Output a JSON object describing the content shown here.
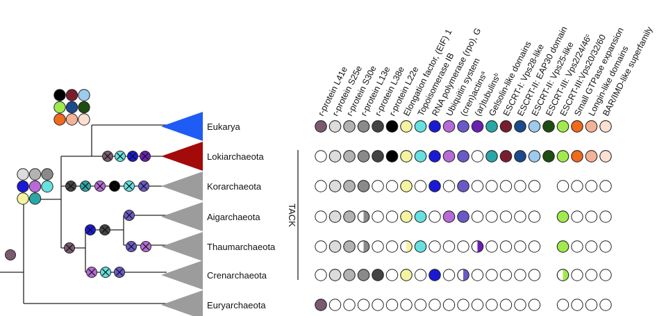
{
  "colors": {
    "eukarya_triangle": "#1f5cf5",
    "lokiarchaeota_triangle": "#a30a0a",
    "other_triangles": "#9c9c9c"
  },
  "characters": [
    {
      "key": "rL41e",
      "label": "r-protein L41e",
      "color": "#7a5a70"
    },
    {
      "key": "rS25e",
      "label": "r-protein S25e",
      "color": "#dcdcdc"
    },
    {
      "key": "rS30e",
      "label": "r-protein S30e",
      "color": "#b3b3b3"
    },
    {
      "key": "rL13e",
      "label": "r-protein L13e",
      "color": "#8a8a8a"
    },
    {
      "key": "rL38e",
      "label": "r-protein L38e",
      "color": "#444444"
    },
    {
      "key": "rL22e",
      "label": "r-protein L22e",
      "color": "#000000"
    },
    {
      "key": "eif1",
      "label": "Elongation factor, (EIF) 1",
      "color": "#f4f4a0"
    },
    {
      "key": "topo",
      "label": "Topoisomerase IB",
      "color": "#66e0e0"
    },
    {
      "key": "rpoG",
      "label": "RNA polymerase (rpo), G",
      "color": "#1a1ad6"
    },
    {
      "key": "ubq",
      "label": "Ubiquitin system",
      "color": "#b86ad8"
    },
    {
      "key": "actin",
      "label": "(cren)actins",
      "sup": "a",
      "color": "#6a5ac8"
    },
    {
      "key": "tub",
      "label": "(ar)tubulins",
      "sup": "b",
      "color": "#6b1fb3"
    },
    {
      "key": "gel",
      "label": "Gelsolin-like domains",
      "color": "#2aa6a6"
    },
    {
      "key": "escrt1",
      "label": "ESCRT-I: Vps28-like",
      "color": "#7a1e2e"
    },
    {
      "key": "escrt2a",
      "label": "ESCRT-II: EAP30 domain",
      "color": "#1c4a8c"
    },
    {
      "key": "escrt2b",
      "label": "ESCRT-II: Vps25-like",
      "color": "#9ccbee"
    },
    {
      "key": "escrt3a",
      "label": "ESCRT-III: Vps2/24/46",
      "sup": "c",
      "color": "#1d4d12"
    },
    {
      "key": "escrt3b",
      "label": "ESCRT-III:Vps20/32/60",
      "color": "#a0ea4e"
    },
    {
      "key": "gtp",
      "label": "Small GTPase expansion",
      "color": "#ef6a1a"
    },
    {
      "key": "longin",
      "label": "Longin-like domains",
      "color": "#f5b296"
    },
    {
      "key": "bar",
      "label": "BAR/IMD-like superfamily",
      "color": "#fde0d2"
    }
  ],
  "taxa": [
    {
      "name": "Eukarya",
      "states": [
        "F",
        "F",
        "F",
        "F",
        "F",
        "F",
        "F",
        "F",
        "F",
        "F",
        "F",
        "F",
        "F",
        "F",
        "F",
        "F",
        "F",
        "F",
        "F",
        "F",
        "F"
      ]
    },
    {
      "name": "Lokiarchaeota",
      "states": [
        "E",
        "F",
        "F",
        "F",
        "F",
        "F",
        "F",
        "F",
        "F",
        "F",
        "F",
        "E",
        "F",
        "F",
        "F",
        "F",
        "F",
        "F",
        "F",
        "F",
        "F"
      ]
    },
    {
      "name": "Korarchaeota",
      "states": [
        "E",
        "F",
        "F",
        "F",
        "E",
        "E",
        "F",
        "E",
        "F",
        "E",
        "F",
        "E",
        "E",
        "E",
        "E",
        "E",
        "N",
        "E",
        "E",
        "E",
        "E"
      ]
    },
    {
      "name": "Aigarchaeota",
      "states": [
        "E",
        "F",
        "F",
        "H",
        "E",
        "E",
        "F",
        "F",
        "E",
        "F",
        "F",
        "E",
        "E",
        "E",
        "E",
        "E",
        "N",
        "F",
        "E",
        "E",
        "E"
      ]
    },
    {
      "name": "Thaumarchaeota",
      "states": [
        "E",
        "F",
        "F",
        "H",
        "E",
        "E",
        "Q",
        "F",
        "E",
        "E",
        "E",
        "Q",
        "E",
        "E",
        "E",
        "E",
        "N",
        "F",
        "E",
        "E",
        "E"
      ]
    },
    {
      "name": "Crenarchaeota",
      "states": [
        "E",
        "F",
        "F",
        "F",
        "F",
        "E",
        "F",
        "E",
        "F",
        "E",
        "L",
        "E",
        "E",
        "E",
        "E",
        "E",
        "N",
        "H",
        "E",
        "E",
        "E"
      ]
    },
    {
      "name": "Euryarchaeota",
      "states": [
        "F",
        "E",
        "E",
        "E",
        "E",
        "E",
        "E",
        "E",
        "E",
        "E",
        "E",
        "E",
        "E",
        "E",
        "E",
        "E",
        "N",
        "E",
        "E",
        "E",
        "E"
      ]
    }
  ],
  "tack_label": "TACK",
  "tree": {
    "root_gain": [
      "rL41e"
    ],
    "ta_gains": [
      "rS25e",
      "rS30e",
      "rL13e",
      "rpoG",
      "ubq",
      "topo",
      "eif1",
      "gel"
    ],
    "eukarya_loki_gains": [
      "rL22e",
      "escrt1",
      "escrt2b",
      "escrt3b",
      "escrt2a",
      "escrt3a",
      "gtp",
      "longin",
      "bar"
    ],
    "loki_branch_losses": [
      "rL41e",
      "topo",
      "rpoG",
      "tub"
    ],
    "kor_branch_losses": [
      "rL38e",
      "gel",
      "ubq",
      "rL22e",
      "topo",
      "actin"
    ],
    "tack_node_losses": [
      "rL41e"
    ],
    "aig_thaum_losses": [
      "rpoG",
      "rL38e"
    ],
    "aig_losses": [
      "actin"
    ],
    "thaum_losses": [
      "actin",
      "ubq"
    ],
    "cren_losses": [
      "ubq",
      "topo",
      "actin"
    ]
  }
}
